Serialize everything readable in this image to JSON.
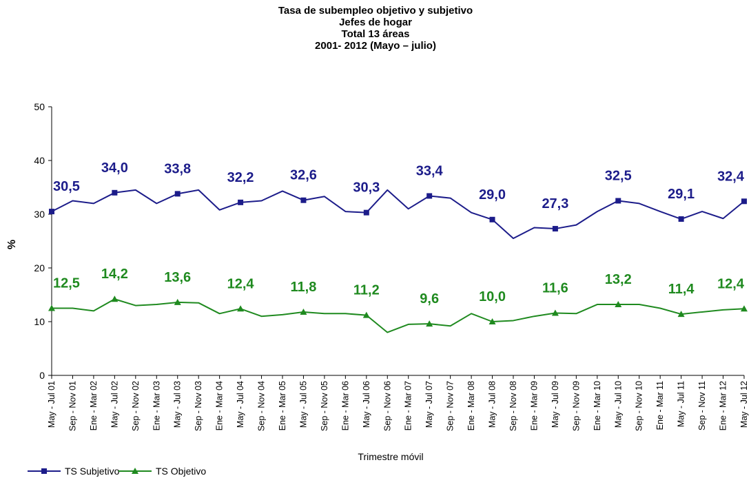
{
  "chart_data": {
    "type": "line",
    "title": [
      "Tasa de subempleo objetivo y subjetivo",
      "Jefes de hogar",
      "Total 13 áreas",
      "2001- 2012 (Mayo – julio)"
    ],
    "x_label": "Trimestre móvil",
    "y_label": "%",
    "categories": [
      "May - Jul 01",
      "Sep - Nov 01",
      "Ene - Mar 02",
      "May - Jul 02",
      "Sep - Nov 02",
      "Ene - Mar 03",
      "May - Jul 03",
      "Sep - Nov 03",
      "Ene - Mar 04",
      "May - Jul 04",
      "Sep - Nov 04",
      "Ene - Mar 05",
      "May - Jul 05",
      "Sep - Nov 05",
      "Ene - Mar 06",
      "May - Jul 06",
      "Sep - Nov 06",
      "Ene - Mar 07",
      "May - Jul 07",
      "Sep - Nov 07",
      "Ene - Mar 08",
      "May - Jul 08",
      "Sep - Nov 08",
      "Ene - Mar 09",
      "May - Jul 09",
      "Sep - Nov 09",
      "Ene - Mar 10",
      "May - Jul 10",
      "Sep - Nov 10",
      "Ene - Mar 11",
      "May - Jul 11",
      "Sep - Nov 11",
      "Ene - Mar 12",
      "May - Jul 12"
    ],
    "series": [
      {
        "name": "TS Subjetivo",
        "color": "#1c1c8a",
        "marker": "square",
        "values": [
          30.5,
          32.5,
          32,
          34.0,
          34.5,
          32,
          33.8,
          34.5,
          30.8,
          32.2,
          32.5,
          34.3,
          32.6,
          33.3,
          30.5,
          30.3,
          34.5,
          31,
          33.4,
          33,
          30.3,
          29.0,
          25.5,
          27.5,
          27.3,
          28,
          30.5,
          32.5,
          32,
          30.5,
          29.1,
          30.5,
          29.2,
          32.4
        ],
        "value_labels": [
          "30,5",
          null,
          null,
          "34,0",
          null,
          null,
          "33,8",
          null,
          null,
          "32,2",
          null,
          null,
          "32,6",
          null,
          null,
          "30,3",
          null,
          null,
          "33,4",
          null,
          null,
          "29,0",
          null,
          null,
          "27,3",
          null,
          null,
          "32,5",
          null,
          null,
          "29,1",
          null,
          null,
          "32,4"
        ]
      },
      {
        "name": "TS Objetivo",
        "color": "#1f8a1f",
        "marker": "triangle",
        "values": [
          12.5,
          12.5,
          12,
          14.2,
          13,
          13.2,
          13.6,
          13.5,
          11.5,
          12.4,
          11,
          11.3,
          11.8,
          11.5,
          11.5,
          11.2,
          8,
          9.5,
          9.6,
          9.2,
          11.5,
          10.0,
          10.2,
          11,
          11.6,
          11.5,
          13.2,
          13.2,
          13.2,
          12.5,
          11.4,
          11.8,
          12.2,
          12.4
        ],
        "value_labels": [
          "12,5",
          null,
          null,
          "14,2",
          null,
          null,
          "13,6",
          null,
          null,
          "12,4",
          null,
          null,
          "11,8",
          null,
          null,
          "11,2",
          null,
          null,
          "9,6",
          null,
          null,
          "10,0",
          null,
          null,
          "11,6",
          null,
          null,
          "13,2",
          null,
          null,
          "11,4",
          null,
          null,
          "12,4"
        ]
      }
    ],
    "ylim": [
      0,
      50
    ],
    "yticks": [
      0,
      10,
      20,
      30,
      40,
      50
    ],
    "legend": "bottom-left"
  }
}
